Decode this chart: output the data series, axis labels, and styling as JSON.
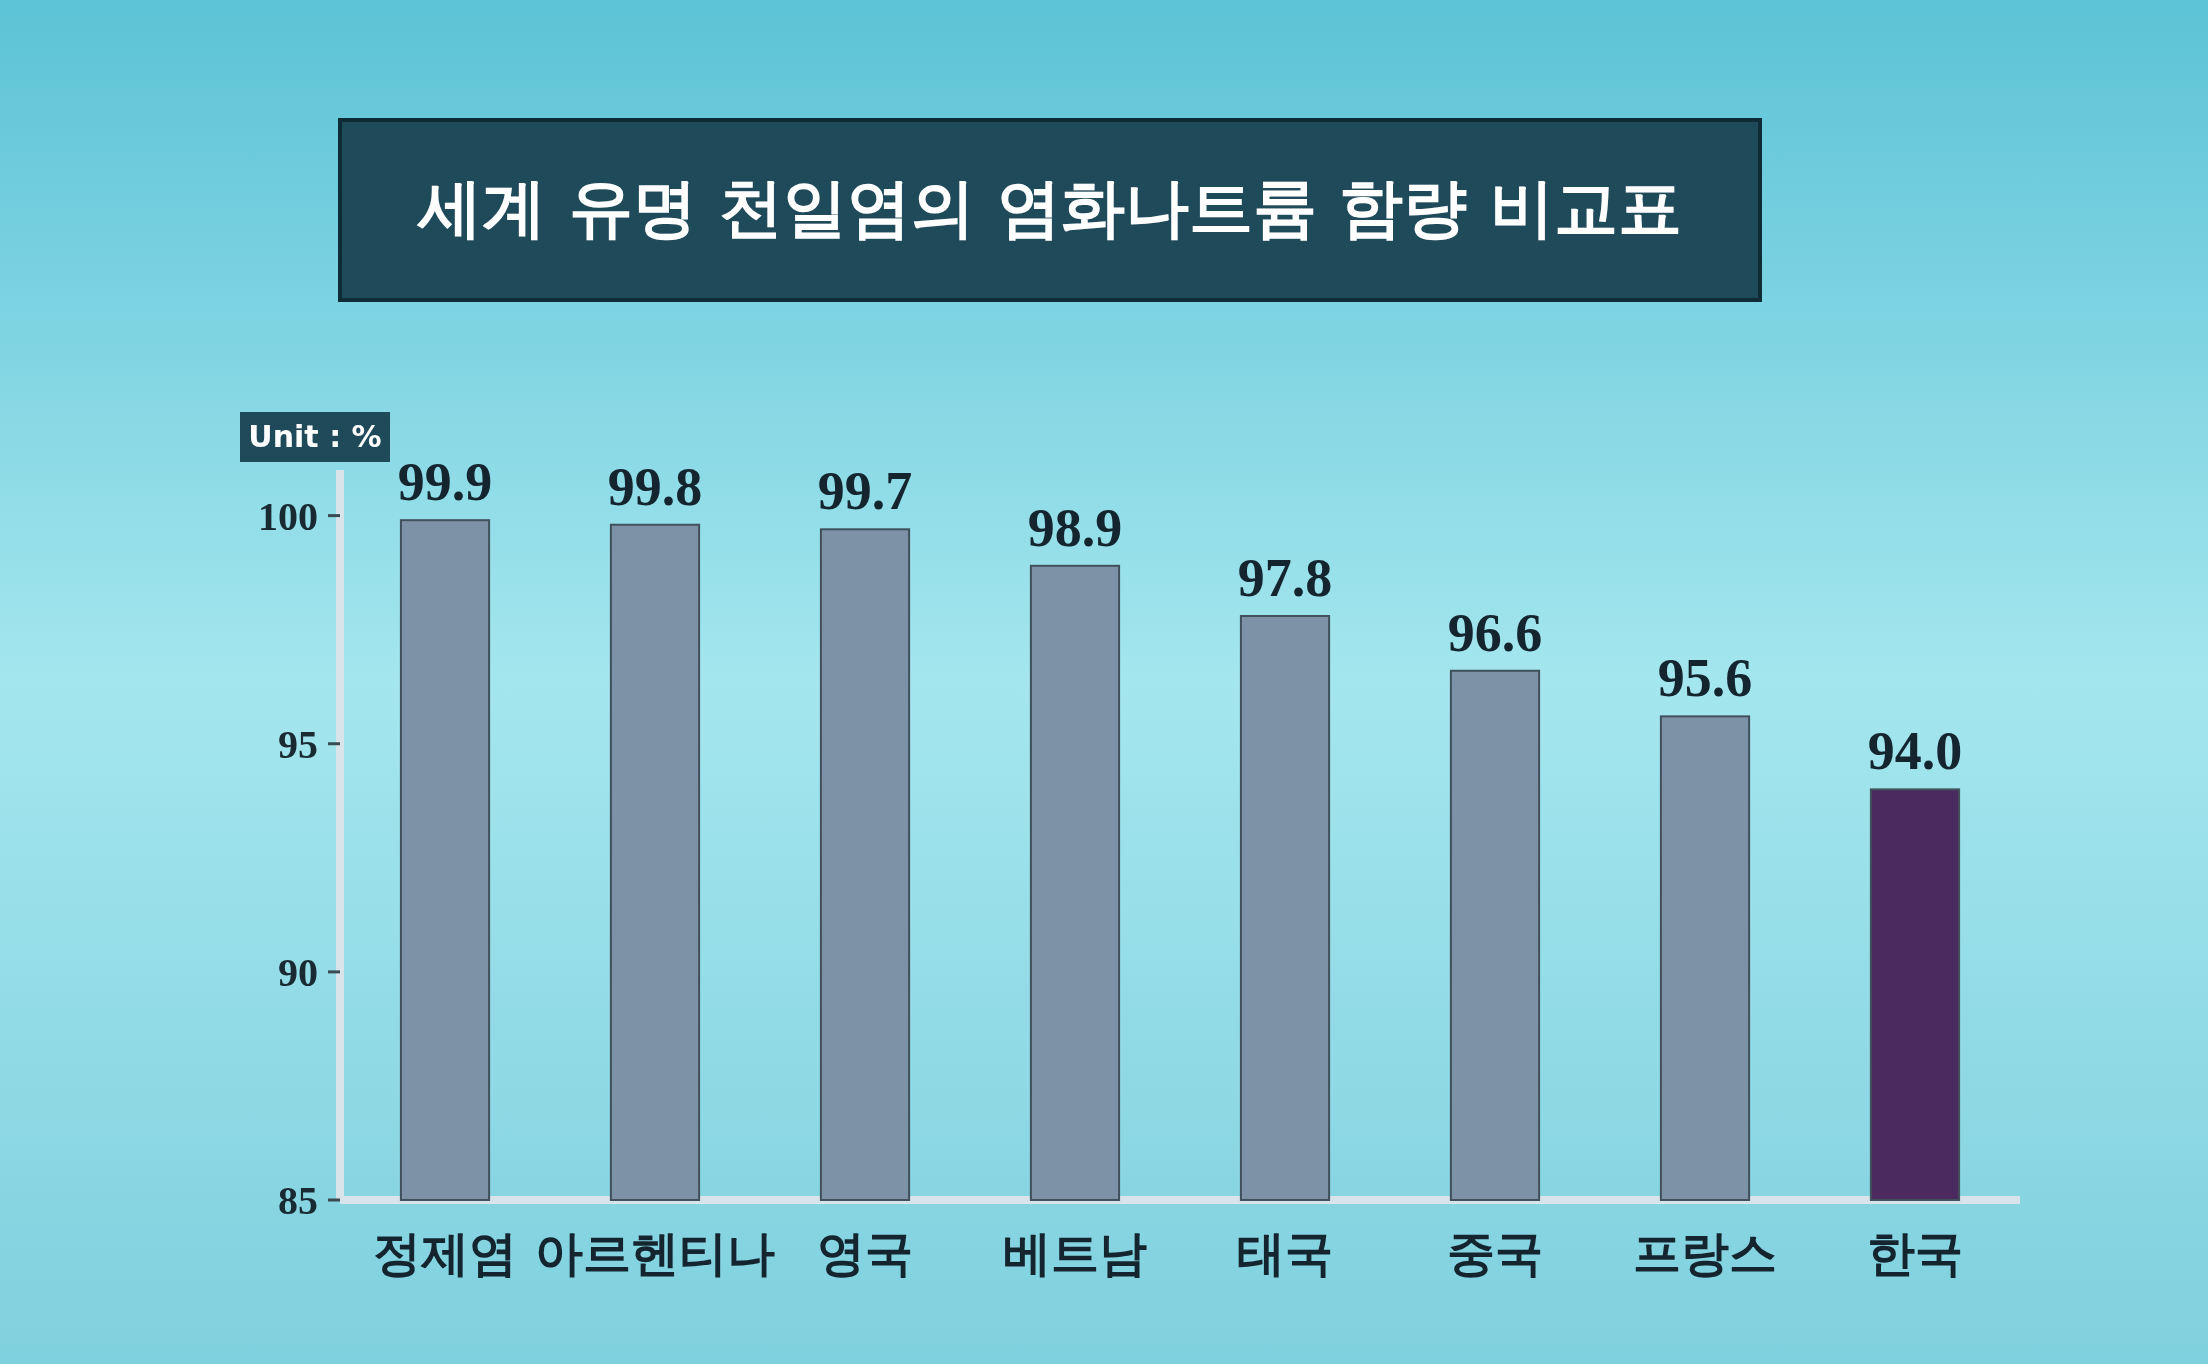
{
  "chart_data": {
    "type": "bar",
    "title": "세계 유명 천일염의 염화나트륨 함량 비교표",
    "annotations": [
      "Unit : %"
    ],
    "categories": [
      "정제염",
      "아르헨티나",
      "영국",
      "베트남",
      "태국",
      "중국",
      "프랑스",
      "한국"
    ],
    "values": [
      99.9,
      99.8,
      99.7,
      98.9,
      97.8,
      96.6,
      95.6,
      94.0
    ],
    "value_labels": [
      "99.9",
      "99.8",
      "99.7",
      "98.9",
      "97.8",
      "96.6",
      "95.6",
      "94.0"
    ],
    "colors": [
      "#7d92a6",
      "#7d92a6",
      "#7d92a6",
      "#7d92a6",
      "#7d92a6",
      "#7d92a6",
      "#7d92a6",
      "#4b2b5f"
    ],
    "ylim": [
      85,
      101
    ],
    "yticks": [
      85,
      90,
      95,
      100
    ],
    "grid": false
  }
}
